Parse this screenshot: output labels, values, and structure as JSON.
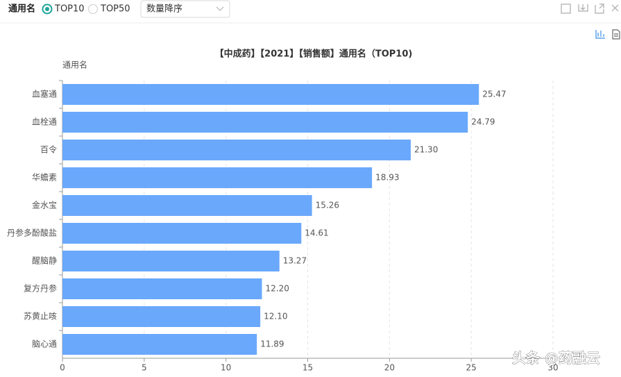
{
  "toolbar": {
    "label": "通用名",
    "options": [
      "TOP10",
      "TOP50"
    ],
    "selected": 0,
    "sort": "数量降序"
  },
  "chart_data": {
    "type": "bar",
    "orientation": "horizontal",
    "title": "【中成药】【2021】【销售额】通用名（TOP10)",
    "y_axis_label": "通用名",
    "categories": [
      "血塞通",
      "血栓通",
      "百令",
      "华蟾素",
      "金水宝",
      "丹参多酚酸盐",
      "醒脑静",
      "复方丹参",
      "苏黄止咳",
      "脑心通"
    ],
    "values": [
      25.47,
      24.79,
      21.3,
      18.93,
      15.26,
      14.61,
      13.27,
      12.2,
      12.1,
      11.89
    ],
    "value_labels": [
      "25.47",
      "24.79",
      "21.30",
      "18.93",
      "15.26",
      "14.61",
      "13.27",
      "12.20",
      "12.10",
      "11.89"
    ],
    "color": "#6aa8fb",
    "xlim": [
      0,
      30
    ],
    "xticks": [
      0,
      5,
      10,
      15,
      20,
      25,
      30
    ],
    "grid": true
  },
  "watermark": "头条 @药融云"
}
